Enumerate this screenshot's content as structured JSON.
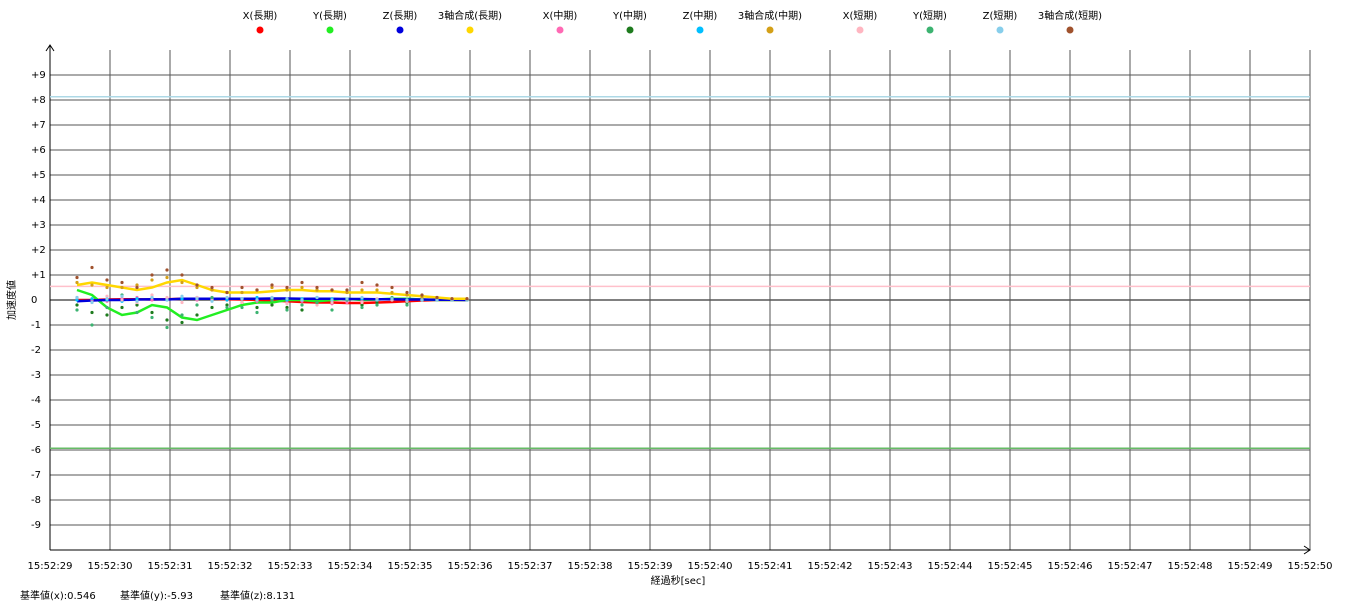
{
  "chart_data": {
    "type": "line",
    "x_label": "経過秒[sec]",
    "y_label": "加速度値",
    "xlim": [
      29,
      50
    ],
    "ylim": [
      -10,
      10
    ],
    "grid": true,
    "legend": "top",
    "xticks": [
      {
        "value": 29,
        "label": "15:52:29"
      },
      {
        "value": 30,
        "label": "15:52:30"
      },
      {
        "value": 31,
        "label": "15:52:31"
      },
      {
        "value": 32,
        "label": "15:52:32"
      },
      {
        "value": 33,
        "label": "15:52:33"
      },
      {
        "value": 34,
        "label": "15:52:34"
      },
      {
        "value": 35,
        "label": "15:52:35"
      },
      {
        "value": 36,
        "label": "15:52:36"
      },
      {
        "value": 37,
        "label": "15:52:37"
      },
      {
        "value": 38,
        "label": "15:52:38"
      },
      {
        "value": 39,
        "label": "15:52:39"
      },
      {
        "value": 40,
        "label": "15:52:40"
      },
      {
        "value": 41,
        "label": "15:52:41"
      },
      {
        "value": 42,
        "label": "15:52:42"
      },
      {
        "value": 43,
        "label": "15:52:43"
      },
      {
        "value": 44,
        "label": "15:52:44"
      },
      {
        "value": 45,
        "label": "15:52:45"
      },
      {
        "value": 46,
        "label": "15:52:46"
      },
      {
        "value": 47,
        "label": "15:52:47"
      },
      {
        "value": 48,
        "label": "15:52:48"
      },
      {
        "value": 49,
        "label": "15:52:49"
      },
      {
        "value": 50,
        "label": "15:52:50"
      }
    ],
    "yticks": [
      {
        "value": 9,
        "label": "+9"
      },
      {
        "value": 8,
        "label": "+8"
      },
      {
        "value": 7,
        "label": "+7"
      },
      {
        "value": 6,
        "label": "+6"
      },
      {
        "value": 5,
        "label": "+5"
      },
      {
        "value": 4,
        "label": "+4"
      },
      {
        "value": 3,
        "label": "+3"
      },
      {
        "value": 2,
        "label": "+2"
      },
      {
        "value": 1,
        "label": "+1"
      },
      0,
      -1,
      -2,
      -3,
      -4,
      -5,
      -6,
      -7,
      -8,
      -9
    ],
    "x": [
      29.45,
      29.7,
      29.95,
      30.2,
      30.45,
      30.7,
      30.95,
      31.2,
      31.45,
      31.7,
      31.95,
      32.2,
      32.45,
      32.7,
      32.95,
      33.2,
      33.45,
      33.7,
      33.95,
      34.2,
      34.45,
      34.7,
      34.95,
      35.2,
      35.45,
      35.7,
      35.95
    ],
    "series": [
      {
        "name": "X(長期)",
        "color": "#ff0000",
        "mode": "line",
        "values": [
          0,
          0,
          0.02,
          0.03,
          0.03,
          0.02,
          0.03,
          0.05,
          0.05,
          0.05,
          0.03,
          0.02,
          0,
          -0.02,
          -0.05,
          -0.08,
          -0.1,
          -0.1,
          -0.12,
          -0.12,
          -0.1,
          -0.08,
          -0.05,
          -0.02,
          0,
          0,
          0
        ]
      },
      {
        "name": "Y(長期)",
        "color": "#22ee22",
        "mode": "line",
        "values": [
          0.4,
          0.2,
          -0.3,
          -0.6,
          -0.5,
          -0.2,
          -0.3,
          -0.7,
          -0.8,
          -0.6,
          -0.4,
          -0.2,
          -0.1,
          -0.1,
          0,
          0,
          -0.05,
          0,
          0.05,
          0,
          0.02,
          0.05,
          0.05,
          0.02,
          0,
          0,
          0
        ]
      },
      {
        "name": "Z(長期)",
        "color": "#0000dd",
        "mode": "line",
        "values": [
          -0.05,
          -0.02,
          0,
          0,
          0.02,
          0.03,
          0.02,
          0.05,
          0.05,
          0.05,
          0.05,
          0.05,
          0.05,
          0.06,
          0.06,
          0.05,
          0.05,
          0.05,
          0.04,
          0.04,
          0.03,
          0.03,
          0.02,
          0.02,
          0.01,
          0.01,
          0
        ]
      },
      {
        "name": "3軸合成(長期)",
        "color": "#ffd700",
        "mode": "line",
        "values": [
          0.6,
          0.7,
          0.6,
          0.5,
          0.4,
          0.5,
          0.7,
          0.8,
          0.6,
          0.4,
          0.3,
          0.3,
          0.3,
          0.35,
          0.4,
          0.4,
          0.35,
          0.35,
          0.3,
          0.3,
          0.3,
          0.25,
          0.2,
          0.15,
          0.1,
          0.05,
          0.05
        ]
      },
      {
        "name": "X(中期)",
        "color": "#ff69b4",
        "mode": "markers",
        "values": [
          0.05,
          0,
          -0.05,
          0.05,
          0.1,
          0,
          0.05,
          0.1,
          0,
          0.05,
          0,
          0.05,
          -0.05,
          0,
          -0.1,
          -0.05,
          -0.1,
          -0.15,
          -0.1,
          -0.05,
          -0.1,
          0,
          -0.05,
          0,
          0,
          0,
          0
        ]
      },
      {
        "name": "Y(中期)",
        "color": "#1e7b1e",
        "mode": "markers",
        "values": [
          -0.2,
          -0.5,
          -0.6,
          -0.3,
          -0.2,
          -0.5,
          -0.8,
          -0.9,
          -0.6,
          -0.3,
          -0.2,
          -0.1,
          -0.3,
          -0.2,
          -0.3,
          -0.4,
          -0.1,
          -0.1,
          0,
          -0.2,
          -0.1,
          0,
          -0.1,
          0,
          0,
          0,
          0
        ]
      },
      {
        "name": "Z(中期)",
        "color": "#00bfff",
        "mode": "markers",
        "values": [
          0,
          0.05,
          0,
          -0.05,
          0.05,
          0.1,
          0,
          0.05,
          0.1,
          0.05,
          0,
          0.05,
          0.1,
          0.05,
          0,
          0.05,
          0.1,
          0.05,
          0,
          0.05,
          0,
          0.05,
          0,
          0,
          0,
          0,
          0
        ]
      },
      {
        "name": "3軸合成(中期)",
        "color": "#d4a017",
        "mode": "markers",
        "values": [
          0.7,
          0.6,
          0.5,
          0.5,
          0.6,
          0.8,
          0.9,
          0.7,
          0.5,
          0.4,
          0.3,
          0.3,
          0.4,
          0.5,
          0.4,
          0.5,
          0.4,
          0.4,
          0.3,
          0.4,
          0.4,
          0.3,
          0.2,
          0.1,
          0.1,
          0.05,
          0.05
        ]
      },
      {
        "name": "X(短期)",
        "color": "#ffb6c1",
        "mode": "markers",
        "values": [
          0.1,
          -0.1,
          0.15,
          0,
          -0.1,
          0.2,
          0.1,
          -0.1,
          0.1,
          0,
          0.1,
          -0.1,
          0,
          0.1,
          -0.15,
          0,
          -0.2,
          -0.1,
          0,
          -0.1,
          0.05,
          0,
          -0.05,
          0,
          0,
          0,
          0
        ]
      },
      {
        "name": "Y(短期)",
        "color": "#3cb371",
        "mode": "markers",
        "values": [
          -0.4,
          -1.0,
          -0.3,
          0.2,
          -0.5,
          -0.7,
          -1.1,
          -0.6,
          -0.2,
          0.1,
          -0.3,
          -0.3,
          -0.5,
          0,
          -0.4,
          -0.2,
          -0.1,
          -0.4,
          0,
          -0.3,
          -0.2,
          0.1,
          -0.2,
          0,
          0,
          0,
          0
        ]
      },
      {
        "name": "Z(短期)",
        "color": "#87ceeb",
        "mode": "markers",
        "values": [
          0.1,
          -0.1,
          0.05,
          0.15,
          -0.05,
          0.1,
          0,
          0.15,
          0.05,
          -0.05,
          0.1,
          0.05,
          0,
          0.1,
          0.05,
          0,
          0.1,
          0,
          0.05,
          0.1,
          0,
          0.05,
          0,
          0,
          0,
          0,
          0
        ]
      },
      {
        "name": "3軸合成(短期)",
        "color": "#a0522d",
        "mode": "markers",
        "values": [
          0.9,
          1.3,
          0.8,
          0.7,
          0.5,
          1.0,
          1.2,
          1.0,
          0.6,
          0.5,
          0.3,
          0.5,
          0.4,
          0.6,
          0.5,
          0.7,
          0.5,
          0.4,
          0.4,
          0.7,
          0.6,
          0.5,
          0.3,
          0.2,
          0.1,
          0.05,
          0.05
        ]
      }
    ],
    "base_values": [
      {
        "label": "基準値(x):",
        "value": 0.546,
        "color": "#ffc0cb"
      },
      {
        "label": "基準値(y):",
        "value": -5.93,
        "color": "#66bb66"
      },
      {
        "label": "基準値(z):",
        "value": 8.131,
        "color": "#add8e6"
      }
    ]
  }
}
